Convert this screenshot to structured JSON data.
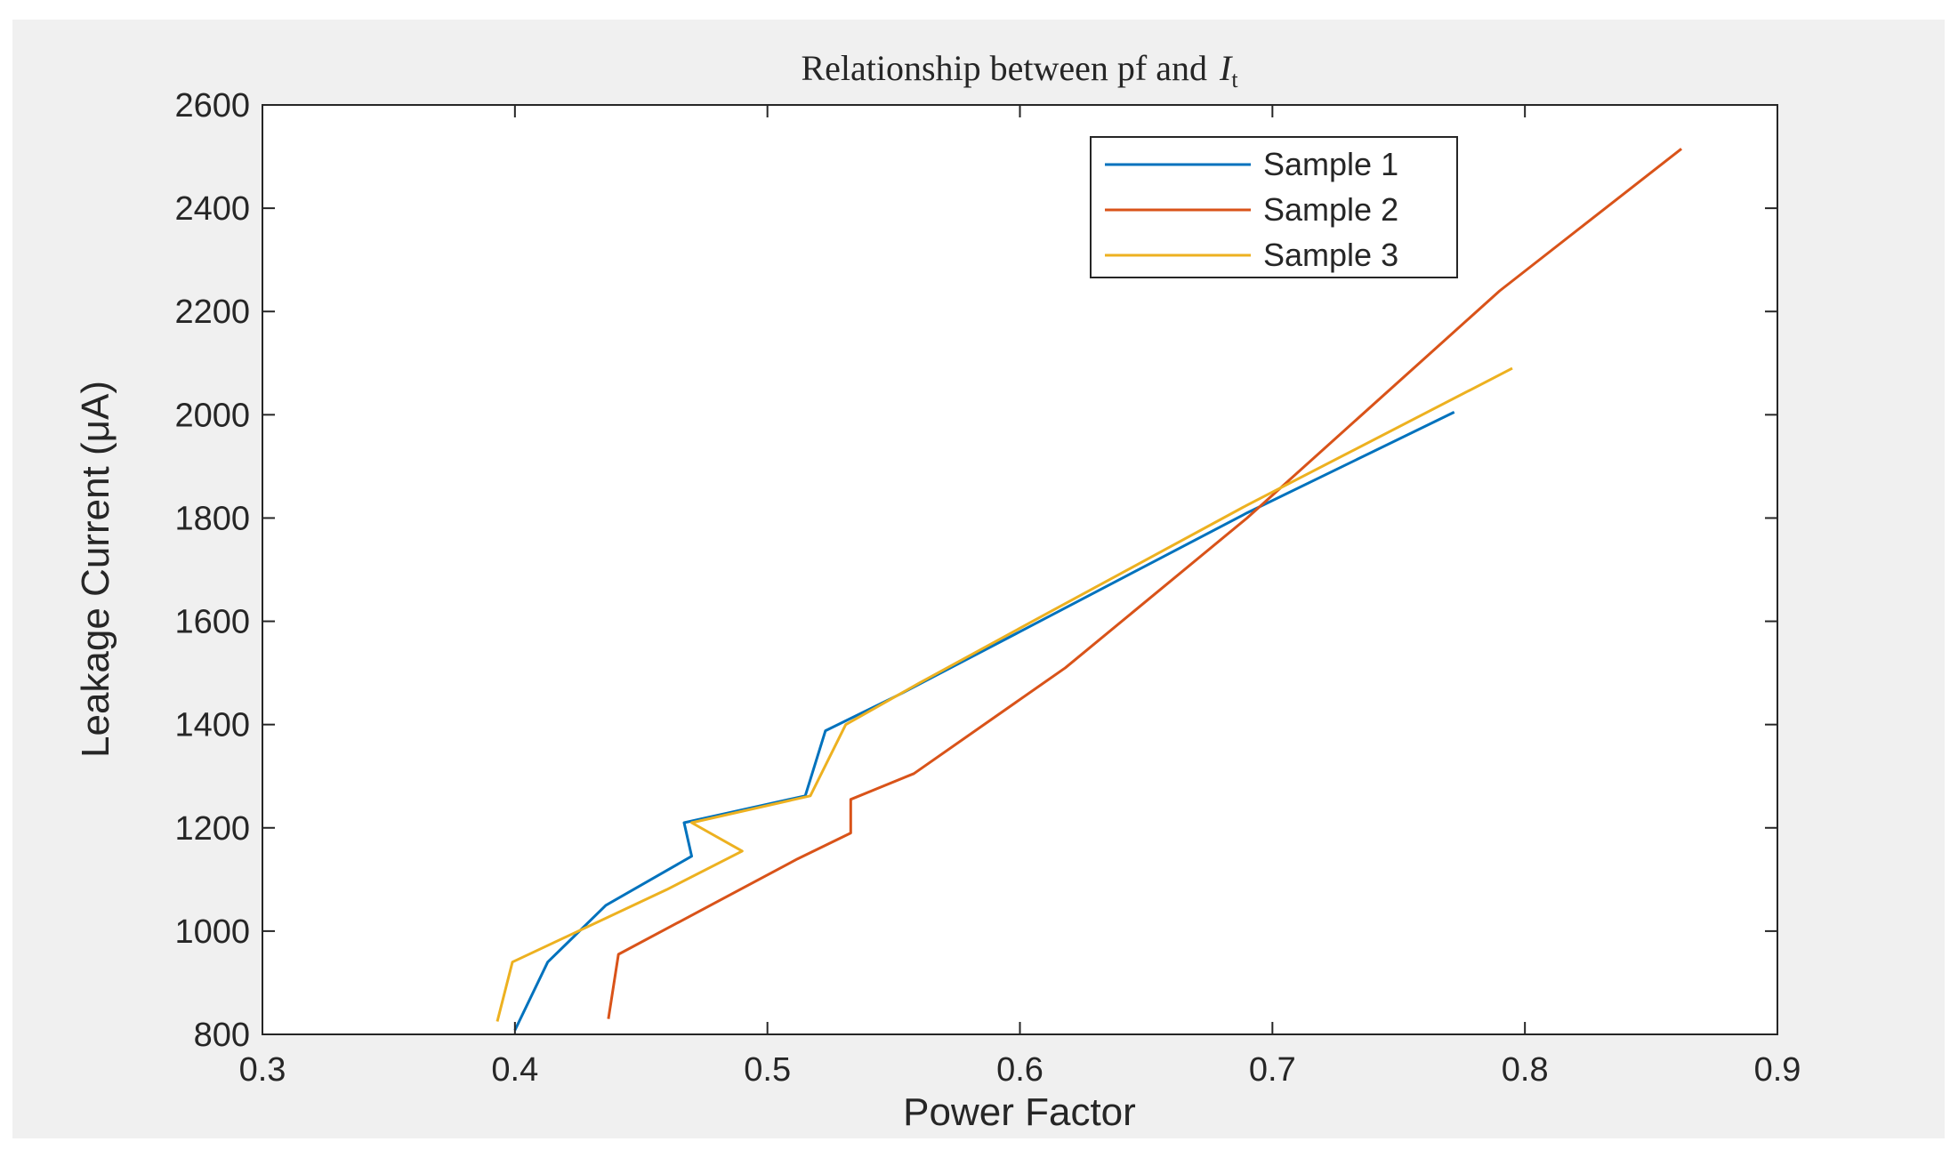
{
  "chart_data": {
    "type": "line",
    "title": "Relationship between pf and",
    "title_symbol": "I",
    "title_subscript": "t",
    "xlabel": "Power Factor",
    "ylabel": "Leakage Current (μA)",
    "xlim": [
      0.3,
      0.9
    ],
    "ylim": [
      800,
      2600
    ],
    "xticks": [
      0.3,
      0.4,
      0.5,
      0.6,
      0.7,
      0.8,
      0.9
    ],
    "xtick_labels": [
      "0.3",
      "0.4",
      "0.5",
      "0.6",
      "0.7",
      "0.8",
      "0.9"
    ],
    "yticks": [
      800,
      1000,
      1200,
      1400,
      1600,
      1800,
      2000,
      2200,
      2400,
      2600
    ],
    "ytick_labels": [
      "800",
      "1000",
      "1200",
      "1400",
      "1600",
      "1800",
      "2000",
      "2200",
      "2400",
      "2600"
    ],
    "grid": false,
    "legend_position": "top-right",
    "series": [
      {
        "name": "Sample 1",
        "color": "#0072BD",
        "x": [
          0.4,
          0.413,
          0.436,
          0.47,
          0.467,
          0.515,
          0.523,
          0.553,
          0.6,
          0.69,
          0.772
        ],
        "y": [
          808,
          940,
          1050,
          1145,
          1210,
          1262,
          1388,
          1460,
          1580,
          1810,
          2005
        ]
      },
      {
        "name": "Sample 2",
        "color": "#D95319",
        "x": [
          0.437,
          0.441,
          0.512,
          0.533,
          0.533,
          0.558,
          0.618,
          0.69,
          0.79,
          0.862
        ],
        "y": [
          830,
          955,
          1140,
          1190,
          1255,
          1305,
          1510,
          1800,
          2240,
          2515
        ]
      },
      {
        "name": "Sample 3",
        "color": "#EDB120",
        "x": [
          0.393,
          0.399,
          0.46,
          0.49,
          0.47,
          0.517,
          0.531,
          0.56,
          0.605,
          0.69,
          0.795
        ],
        "y": [
          825,
          940,
          1080,
          1155,
          1210,
          1262,
          1400,
          1480,
          1600,
          1825,
          2090
        ]
      }
    ]
  }
}
